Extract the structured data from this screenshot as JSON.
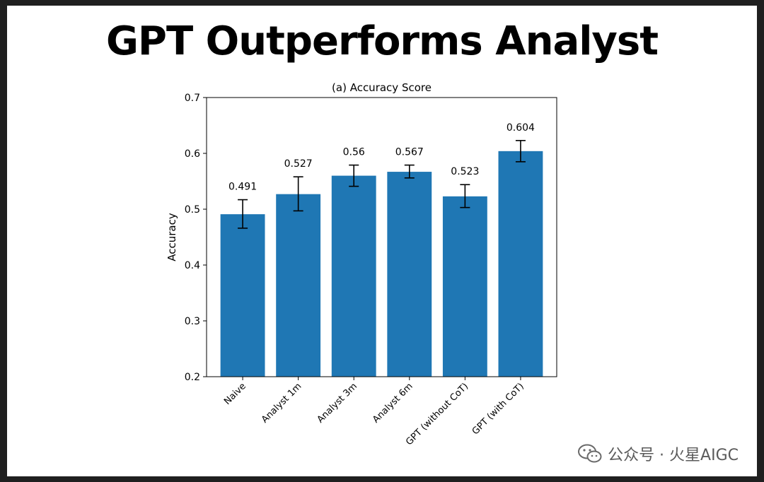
{
  "page": {
    "title": "GPT Outperforms Analyst"
  },
  "watermark": {
    "text": "公众号 · 火星AIGC"
  },
  "colors": {
    "bar": "#1f77b4",
    "error_bar": "#000000",
    "background": "#ffffff",
    "frame": "#1f1f1f"
  },
  "chart_data": {
    "type": "bar",
    "title": "(a) Accuracy Score",
    "xlabel": "",
    "ylabel": "Accuracy",
    "ylim": [
      0.2,
      0.7
    ],
    "yticks": [
      0.2,
      0.3,
      0.4,
      0.5,
      0.6,
      0.7
    ],
    "grid": false,
    "categories": [
      "Naive",
      "Analyst 1m",
      "Analyst 3m",
      "Analyst 6m",
      "GPT (without CoT)",
      "GPT (with CoT)"
    ],
    "values": [
      0.491,
      0.527,
      0.56,
      0.567,
      0.523,
      0.604
    ],
    "value_labels": [
      "0.491",
      "0.527",
      "0.56",
      "0.567",
      "0.523",
      "0.604"
    ],
    "error_low": [
      0.466,
      0.497,
      0.541,
      0.556,
      0.503,
      0.585
    ],
    "error_high": [
      0.517,
      0.558,
      0.579,
      0.579,
      0.544,
      0.623
    ]
  }
}
